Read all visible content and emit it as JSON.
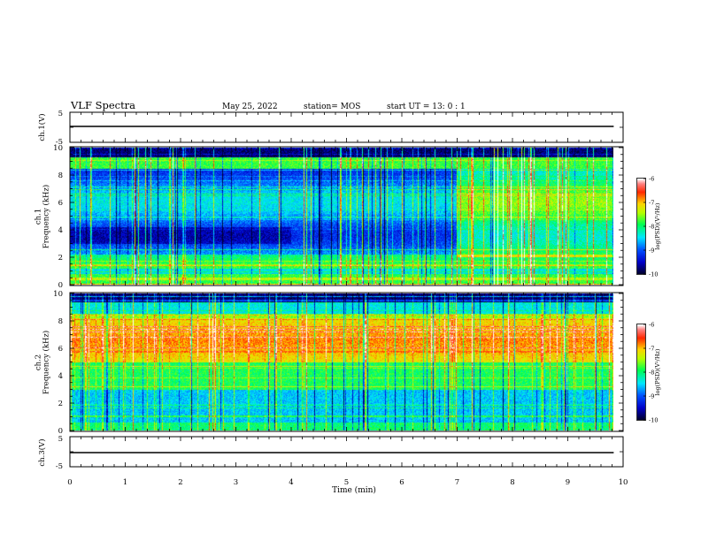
{
  "header": {
    "title": "VLF Spectra",
    "date": "May 25, 2022",
    "station": "station= MOS",
    "start_time": "start  UT  =  13: 0  : 1"
  },
  "colors": {
    "background": "#ffffff",
    "axis": "#000000",
    "colormap": [
      "#000040",
      "#0000ff",
      "#00ffff",
      "#00ff00",
      "#ffff00",
      "#ff0000",
      "#ffffff"
    ]
  },
  "chart_data": [
    {
      "type": "line",
      "id": "ch1-waveform",
      "ylabel": "ch.1(V)",
      "ylim": [
        -5,
        5
      ],
      "y_ticklabels": [
        "5",
        "-5"
      ],
      "xlim": [
        0,
        10
      ],
      "series": [
        {
          "x": [
            0,
            9.83
          ],
          "y": [
            0,
            0
          ]
        }
      ]
    },
    {
      "type": "heatmap",
      "id": "ch1-spectrogram",
      "ylabel": "ch.1\nFrequency (kHz)",
      "ylim": [
        0,
        10
      ],
      "y_ticks": [
        0,
        2,
        4,
        6,
        8,
        10
      ],
      "xlim": [
        0,
        10
      ],
      "data_end_min": 9.83,
      "colorbar": {
        "label": "log(PSD)(V²/Hz)",
        "range": [
          -10,
          -6
        ],
        "ticks": [
          "-6",
          "-7",
          "-8",
          "-9",
          "-10"
        ]
      }
    },
    {
      "type": "heatmap",
      "id": "ch2-spectrogram",
      "ylabel": "ch.2\nFrequency (kHz)",
      "ylim": [
        0,
        10
      ],
      "y_ticks": [
        0,
        2,
        4,
        6,
        8,
        10
      ],
      "xlim": [
        0,
        10
      ],
      "data_end_min": 9.83,
      "colorbar": {
        "label": "log(PSD)(V²/Hz)",
        "range": [
          -10,
          -6
        ],
        "ticks": [
          "-6",
          "-7",
          "-8",
          "-9",
          "-10"
        ]
      }
    },
    {
      "type": "line",
      "id": "ch3-waveform",
      "ylabel": "ch.3(V)",
      "ylim": [
        -5,
        5
      ],
      "y_ticklabels": [
        "5",
        "-5"
      ],
      "xlim": [
        0,
        10
      ],
      "series": [
        {
          "x": [
            0,
            9.83
          ],
          "y": [
            0,
            0
          ]
        }
      ]
    }
  ],
  "x_axis": {
    "label": "Time  (min)",
    "ticks": [
      "0",
      "1",
      "2",
      "3",
      "4",
      "5",
      "6",
      "7",
      "8",
      "9",
      "10"
    ]
  }
}
